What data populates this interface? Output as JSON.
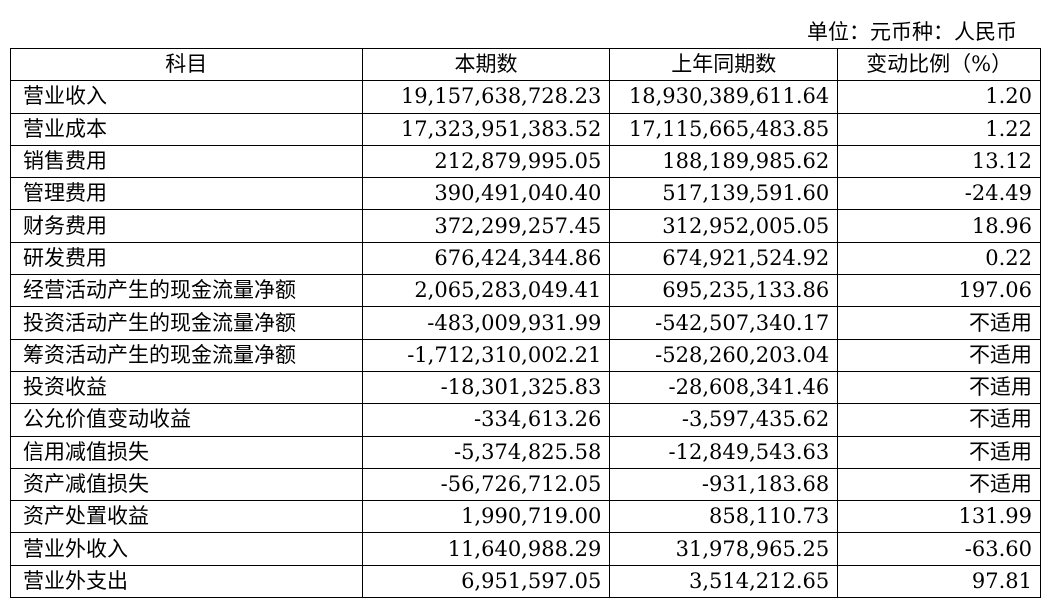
{
  "unit": "单位：元币种：人民币",
  "table": {
    "header": [
      "科目",
      "本期数",
      "上年同期数",
      "变动比例（%）"
    ],
    "rows": [
      [
        "营业收入",
        "19,157,638,728.23",
        "18,930,389,611.64",
        "1.20"
      ],
      [
        "营业成本",
        "17,323,951,383.52",
        "17,115,665,483.85",
        "1.22"
      ],
      [
        "销售费用",
        "212,879,995.05",
        "188,189,985.62",
        "13.12"
      ],
      [
        "管理费用",
        "390,491,040.40",
        "517,139,591.60",
        "-24.49"
      ],
      [
        "财务费用",
        "372,299,257.45",
        "312,952,005.05",
        "18.96"
      ],
      [
        "研发费用",
        "676,424,344.86",
        "674,921,524.92",
        "0.22"
      ],
      [
        "经营活动产生的现金流量净额",
        "2,065,283,049.41",
        "695,235,133.86",
        "197.06"
      ],
      [
        "投资活动产生的现金流量净额",
        "-483,009,931.99",
        "-542,507,340.17",
        "不适用"
      ],
      [
        "筹资活动产生的现金流量净额",
        "-1,712,310,002.21",
        "-528,260,203.04",
        "不适用"
      ],
      [
        "投资收益",
        "-18,301,325.83",
        "-28,608,341.46",
        "不适用"
      ],
      [
        "公允价值变动收益",
        "-334,613.26",
        "-3,597,435.62",
        "不适用"
      ],
      [
        "信用减值损失",
        "-5,374,825.58",
        "-12,849,543.63",
        "不适用"
      ],
      [
        "资产减值损失",
        "-56,726,712.05",
        "-931,183.68",
        "不适用"
      ],
      [
        "资产处置收益",
        "1,990,719.00",
        "858,110.73",
        "131.99"
      ],
      [
        "营业外收入",
        "11,640,988.29",
        "31,978,965.25",
        "-63.60"
      ],
      [
        "营业外支出",
        "6,951,597.05",
        "3,514,212.65",
        "97.81"
      ]
    ]
  }
}
